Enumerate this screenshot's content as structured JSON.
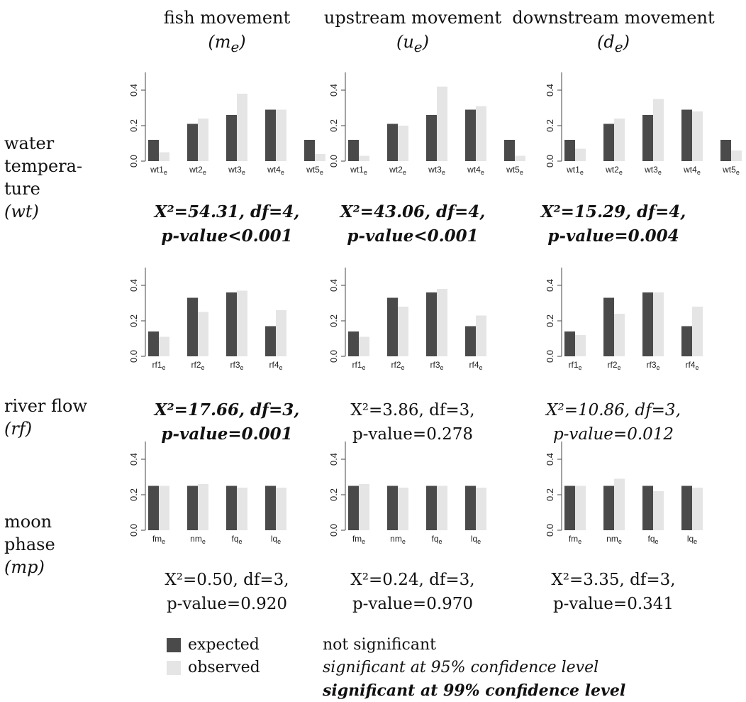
{
  "columns": [
    {
      "title": "fish movement",
      "symbol": "(m",
      "symbol_sub": "e",
      "symbol_close": ")"
    },
    {
      "title": "upstream movement",
      "symbol": "(u",
      "symbol_sub": "e",
      "symbol_close": ")"
    },
    {
      "title": "downstream movement",
      "symbol": "(d",
      "symbol_sub": "e",
      "symbol_close": ")"
    }
  ],
  "rows": [
    {
      "label_lines": [
        "water",
        "tempera-",
        "ture"
      ],
      "symbol": "(wt)"
    },
    {
      "label_lines": [
        "river flow"
      ],
      "symbol": "(rf)"
    },
    {
      "label_lines": [
        "moon",
        "phase"
      ],
      "symbol": "(mp)"
    }
  ],
  "colors": {
    "expected": "#4a4a4a",
    "observed": "#e5e5e5"
  },
  "legend": {
    "expected": "expected",
    "observed": "observed"
  },
  "significance_levels": {
    "not": "not significant",
    "sig95": "significant at 95% confidence level",
    "sig99": "significant at 99% confidence level"
  },
  "chart_data": [
    {
      "type": "bar",
      "row": 0,
      "col": 0,
      "categories": [
        "wt1",
        "wt2",
        "wt3",
        "wt4",
        "wt5"
      ],
      "subscript": "e",
      "series": [
        {
          "name": "expected",
          "values": [
            0.12,
            0.21,
            0.26,
            0.29,
            0.12
          ]
        },
        {
          "name": "observed",
          "values": [
            0.05,
            0.24,
            0.38,
            0.29,
            0.04
          ]
        }
      ],
      "ylim": [
        0,
        0.5
      ],
      "yticks": [
        "0.0",
        "0.2",
        "0.4"
      ],
      "stat_line1": "X²=54.31, df=4,",
      "stat_line2": "p-value<0.001",
      "significance": "sig99"
    },
    {
      "type": "bar",
      "row": 0,
      "col": 1,
      "categories": [
        "wt1",
        "wt2",
        "wt3",
        "wt4",
        "wt5"
      ],
      "subscript": "e",
      "series": [
        {
          "name": "expected",
          "values": [
            0.12,
            0.21,
            0.26,
            0.29,
            0.12
          ]
        },
        {
          "name": "observed",
          "values": [
            0.03,
            0.2,
            0.42,
            0.31,
            0.03
          ]
        }
      ],
      "ylim": [
        0,
        0.5
      ],
      "yticks": [
        "0.0",
        "0.2",
        "0.4"
      ],
      "stat_line1": "X²=43.06, df=4,",
      "stat_line2": "p-value<0.001",
      "significance": "sig99"
    },
    {
      "type": "bar",
      "row": 0,
      "col": 2,
      "categories": [
        "wt1",
        "wt2",
        "wt3",
        "wt4",
        "wt5"
      ],
      "subscript": "e",
      "series": [
        {
          "name": "expected",
          "values": [
            0.12,
            0.21,
            0.26,
            0.29,
            0.12
          ]
        },
        {
          "name": "observed",
          "values": [
            0.07,
            0.24,
            0.35,
            0.28,
            0.06
          ]
        }
      ],
      "ylim": [
        0,
        0.5
      ],
      "yticks": [
        "0.0",
        "0.2",
        "0.4"
      ],
      "stat_line1": "X²=15.29, df=4,",
      "stat_line2": "p-value=0.004",
      "significance": "sig99"
    },
    {
      "type": "bar",
      "row": 1,
      "col": 0,
      "categories": [
        "rf1",
        "rf2",
        "rf3",
        "rf4"
      ],
      "subscript": "e",
      "series": [
        {
          "name": "expected",
          "values": [
            0.14,
            0.33,
            0.36,
            0.17
          ]
        },
        {
          "name": "observed",
          "values": [
            0.11,
            0.25,
            0.37,
            0.26
          ]
        }
      ],
      "ylim": [
        0,
        0.5
      ],
      "yticks": [
        "0.0",
        "0.2",
        "0.4"
      ],
      "stat_line1": "X²=17.66, df=3,",
      "stat_line2": "p-value=0.001",
      "significance": "sig99"
    },
    {
      "type": "bar",
      "row": 1,
      "col": 1,
      "categories": [
        "rf1",
        "rf2",
        "rf3",
        "rf4"
      ],
      "subscript": "e",
      "series": [
        {
          "name": "expected",
          "values": [
            0.14,
            0.33,
            0.36,
            0.17
          ]
        },
        {
          "name": "observed",
          "values": [
            0.11,
            0.28,
            0.38,
            0.23
          ]
        }
      ],
      "ylim": [
        0,
        0.5
      ],
      "yticks": [
        "0.0",
        "0.2",
        "0.4"
      ],
      "stat_line1": "X²=3.86, df=3,",
      "stat_line2": "p-value=0.278",
      "significance": "not"
    },
    {
      "type": "bar",
      "row": 1,
      "col": 2,
      "categories": [
        "rf1",
        "rf2",
        "rf3",
        "rf4"
      ],
      "subscript": "e",
      "series": [
        {
          "name": "expected",
          "values": [
            0.14,
            0.33,
            0.36,
            0.17
          ]
        },
        {
          "name": "observed",
          "values": [
            0.12,
            0.24,
            0.36,
            0.28
          ]
        }
      ],
      "ylim": [
        0,
        0.5
      ],
      "yticks": [
        "0.0",
        "0.2",
        "0.4"
      ],
      "stat_line1": "X²=10.86, df=3,",
      "stat_line2": "p-value=0.012",
      "significance": "sig95"
    },
    {
      "type": "bar",
      "row": 2,
      "col": 0,
      "categories": [
        "fm",
        "nm",
        "fq",
        "lq"
      ],
      "subscript": "e",
      "series": [
        {
          "name": "expected",
          "values": [
            0.25,
            0.25,
            0.25,
            0.25
          ]
        },
        {
          "name": "observed",
          "values": [
            0.25,
            0.26,
            0.24,
            0.24
          ]
        }
      ],
      "ylim": [
        0,
        0.5
      ],
      "yticks": [
        "0.0",
        "0.2",
        "0.4"
      ],
      "stat_line1": "X²=0.50, df=3,",
      "stat_line2": "p-value=0.920",
      "significance": "not"
    },
    {
      "type": "bar",
      "row": 2,
      "col": 1,
      "categories": [
        "fm",
        "nm",
        "fq",
        "lq"
      ],
      "subscript": "e",
      "series": [
        {
          "name": "expected",
          "values": [
            0.25,
            0.25,
            0.25,
            0.25
          ]
        },
        {
          "name": "observed",
          "values": [
            0.26,
            0.24,
            0.25,
            0.24
          ]
        }
      ],
      "ylim": [
        0,
        0.5
      ],
      "yticks": [
        "0.0",
        "0.2",
        "0.4"
      ],
      "stat_line1": "X²=0.24, df=3,",
      "stat_line2": "p-value=0.970",
      "significance": "not"
    },
    {
      "type": "bar",
      "row": 2,
      "col": 2,
      "categories": [
        "fm",
        "nm",
        "fq",
        "lq"
      ],
      "subscript": "e",
      "series": [
        {
          "name": "expected",
          "values": [
            0.25,
            0.25,
            0.25,
            0.25
          ]
        },
        {
          "name": "observed",
          "values": [
            0.25,
            0.29,
            0.22,
            0.24
          ]
        }
      ],
      "ylim": [
        0,
        0.5
      ],
      "yticks": [
        "0.0",
        "0.2",
        "0.4"
      ],
      "stat_line1": "X²=3.35, df=3,",
      "stat_line2": "p-value=0.341",
      "significance": "not"
    }
  ]
}
